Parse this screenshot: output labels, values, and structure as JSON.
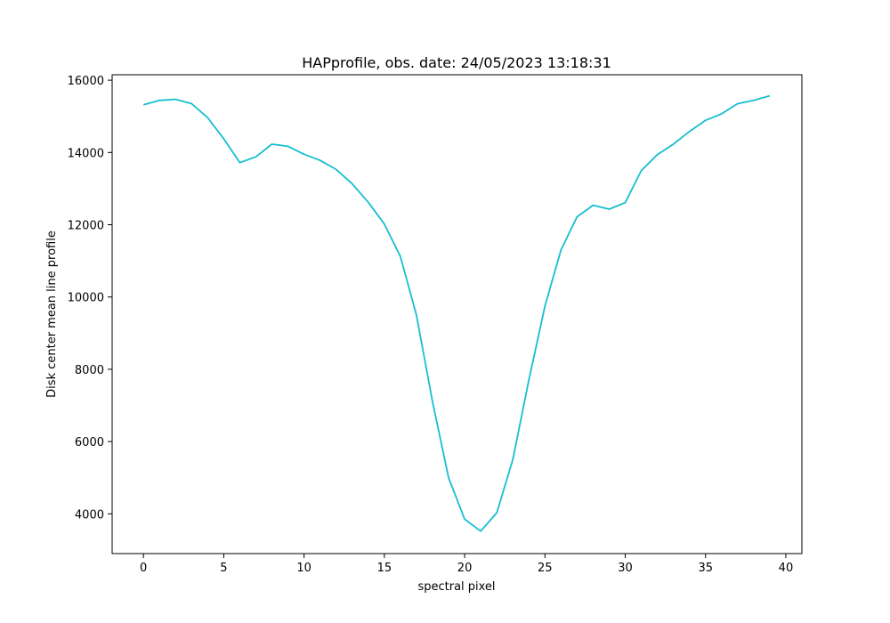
{
  "chart_data": {
    "type": "line",
    "title": "HAPprofile, obs. date: 24/05/2023 13:18:31",
    "xlabel": "spectral pixel",
    "ylabel": "Disk center mean line profile",
    "xlim": [
      -1.95,
      41.0
    ],
    "ylim": [
      2900,
      16150
    ],
    "xticks": [
      0,
      5,
      10,
      15,
      20,
      25,
      30,
      35,
      40
    ],
    "yticks": [
      4000,
      6000,
      8000,
      10000,
      12000,
      14000,
      16000
    ],
    "grid": false,
    "legend": "none",
    "series": [
      {
        "color": "#17becf",
        "x": [
          0,
          1,
          2,
          3,
          4,
          5,
          6,
          7,
          8,
          9,
          10,
          11,
          12,
          13,
          14,
          15,
          16,
          17,
          18,
          19,
          20,
          21,
          22,
          23,
          24,
          25,
          26,
          27,
          28,
          29,
          30,
          31,
          32,
          33,
          34,
          35,
          36,
          37,
          38,
          39
        ],
        "y": [
          15320,
          15440,
          15470,
          15350,
          14960,
          14380,
          13720,
          13880,
          14230,
          14170,
          13950,
          13780,
          13530,
          13130,
          12620,
          12020,
          11120,
          9500,
          7100,
          5000,
          3850,
          3520,
          4030,
          5500,
          7700,
          9750,
          11300,
          12220,
          12540,
          12430,
          12610,
          13500,
          13940,
          14230,
          14580,
          14890,
          15070,
          15350,
          15440,
          15570
        ]
      }
    ]
  }
}
